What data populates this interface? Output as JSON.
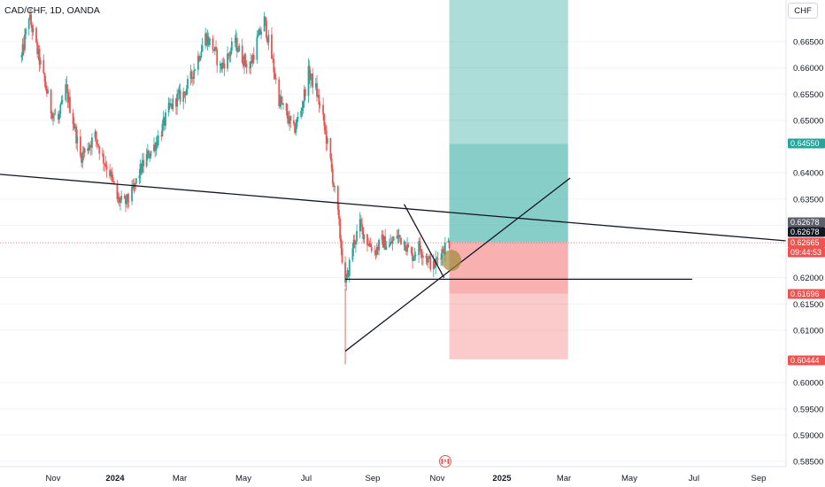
{
  "header": {
    "symbol_title": "CAD/CHF, 1D, OANDA",
    "currency_button": "CHF"
  },
  "colors": {
    "up_candle": "#26a69a",
    "down_candle": "#ef5350",
    "target_zone": "#26a69a",
    "stop_zone": "#ef5350",
    "trend_line": "#131722",
    "highlight_circle": "#a08a3c",
    "axis_text": "#131722",
    "current_price_line": "#ef5350"
  },
  "price_axis_labels": [
    "0.66500",
    "0.66000",
    "0.65500",
    "0.65000",
    "0.64000",
    "0.63500",
    "0.63000",
    "0.62000",
    "0.61500",
    "0.61000",
    "0.60000",
    "0.59500",
    "0.59000",
    "0.58500"
  ],
  "price_tags": [
    {
      "label": "0.64550",
      "color": "#26a69a",
      "text_color": "#ffffff"
    },
    {
      "label": "0.62678",
      "color": "#5d606b",
      "text_color": "#ffffff"
    },
    {
      "label": "0.62678",
      "color": "#131722",
      "text_color": "#ffffff"
    },
    {
      "label": "0.62665",
      "color": "#ef5350",
      "text_color": "#ffffff"
    },
    {
      "label": "09:44:53",
      "color": "#ef5350",
      "text_color": "#ffffff"
    },
    {
      "label": "0.61696",
      "color": "#ef5350",
      "text_color": "#ffffff"
    },
    {
      "label": "0.60444",
      "color": "#ef5350",
      "text_color": "#ffffff"
    }
  ],
  "time_axis_labels": [
    {
      "label": "Nov",
      "bold": false
    },
    {
      "label": "2024",
      "bold": true
    },
    {
      "label": "Mar",
      "bold": false
    },
    {
      "label": "May",
      "bold": false
    },
    {
      "label": "Jul",
      "bold": false
    },
    {
      "label": "Sep",
      "bold": false
    },
    {
      "label": "Nov",
      "bold": false
    },
    {
      "label": "2025",
      "bold": true
    },
    {
      "label": "Mar",
      "bold": false
    },
    {
      "label": "May",
      "bold": false
    },
    {
      "label": "Jul",
      "bold": false
    },
    {
      "label": "Sep",
      "bold": false
    }
  ],
  "time_marker_icon": "canada-flag-icon",
  "chart_data": {
    "type": "candlestick",
    "instrument": "CAD/CHF",
    "timeframe": "1D",
    "source": "OANDA",
    "ylim": [
      0.5835,
      0.672
    ],
    "price_ticks": [
      0.665,
      0.66,
      0.655,
      0.65,
      0.64,
      0.635,
      0.63,
      0.62,
      0.615,
      0.61,
      0.6,
      0.595,
      0.59,
      0.585
    ],
    "current_price": 0.62665,
    "countdown": "09:44:53",
    "position": {
      "type": "long",
      "entry": 0.62678,
      "target": 0.6455,
      "stop": 0.61696,
      "stop_extended": 0.60444
    },
    "price_path": [
      [
        "2023-10-02",
        0.662
      ],
      [
        "2023-10-09",
        0.67
      ],
      [
        "2023-10-16",
        0.664
      ],
      [
        "2023-10-23",
        0.658
      ],
      [
        "2023-10-30",
        0.652
      ],
      [
        "2023-11-06",
        0.65
      ],
      [
        "2023-11-13",
        0.656
      ],
      [
        "2023-11-20",
        0.65
      ],
      [
        "2023-11-27",
        0.643
      ],
      [
        "2023-12-04",
        0.645
      ],
      [
        "2023-12-11",
        0.647
      ],
      [
        "2023-12-18",
        0.643
      ],
      [
        "2023-12-25",
        0.64
      ],
      [
        "2024-01-01",
        0.635
      ],
      [
        "2024-01-08",
        0.634
      ],
      [
        "2024-01-15",
        0.636
      ],
      [
        "2024-01-22",
        0.64
      ],
      [
        "2024-01-29",
        0.643
      ],
      [
        "2024-02-05",
        0.645
      ],
      [
        "2024-02-12",
        0.648
      ],
      [
        "2024-02-19",
        0.652
      ],
      [
        "2024-02-26",
        0.654
      ],
      [
        "2024-03-04",
        0.655
      ],
      [
        "2024-03-11",
        0.658
      ],
      [
        "2024-03-18",
        0.662
      ],
      [
        "2024-03-25",
        0.666
      ],
      [
        "2024-04-01",
        0.664
      ],
      [
        "2024-04-08",
        0.66
      ],
      [
        "2024-04-15",
        0.662
      ],
      [
        "2024-04-22",
        0.665
      ],
      [
        "2024-04-29",
        0.662
      ],
      [
        "2024-05-06",
        0.66
      ],
      [
        "2024-05-13",
        0.665
      ],
      [
        "2024-05-20",
        0.669
      ],
      [
        "2024-05-27",
        0.662
      ],
      [
        "2024-06-03",
        0.654
      ],
      [
        "2024-06-10",
        0.651
      ],
      [
        "2024-06-17",
        0.648
      ],
      [
        "2024-06-24",
        0.652
      ],
      [
        "2024-07-01",
        0.659
      ],
      [
        "2024-07-08",
        0.656
      ],
      [
        "2024-07-15",
        0.65
      ],
      [
        "2024-07-22",
        0.642
      ],
      [
        "2024-07-29",
        0.632
      ],
      [
        "2024-08-05",
        0.618
      ],
      [
        "2024-08-12",
        0.626
      ],
      [
        "2024-08-19",
        0.63
      ],
      [
        "2024-08-26",
        0.627
      ],
      [
        "2024-09-02",
        0.625
      ],
      [
        "2024-09-09",
        0.627
      ],
      [
        "2024-09-16",
        0.626
      ],
      [
        "2024-09-23",
        0.628
      ],
      [
        "2024-09-30",
        0.627
      ],
      [
        "2024-10-07",
        0.624
      ],
      [
        "2024-10-14",
        0.626
      ],
      [
        "2024-10-21",
        0.624
      ],
      [
        "2024-10-28",
        0.622
      ],
      [
        "2024-11-04",
        0.625
      ],
      [
        "2024-11-11",
        0.6267
      ]
    ],
    "drawings": [
      {
        "kind": "trendline",
        "from": [
          "2023-08-25",
          0.64
        ],
        "to": [
          "2025-09-30",
          0.627
        ]
      },
      {
        "kind": "trendline",
        "from": [
          "2024-08-05",
          0.606
        ],
        "to": [
          "2025-03-07",
          0.639
        ]
      },
      {
        "kind": "trendline",
        "from": [
          "2024-09-30",
          0.634
        ],
        "to": [
          "2024-11-07",
          0.62
        ]
      },
      {
        "kind": "horizontal_segment",
        "from": [
          "2024-08-05",
          0.6197
        ],
        "to": [
          "2025-07-01",
          0.6197
        ]
      }
    ],
    "highlight_circle_at": [
      "2024-11-14",
      0.6233
    ],
    "x_axis_ticks": [
      "Nov",
      "2024",
      "Mar",
      "May",
      "Jul",
      "Sep",
      "Nov",
      "2025",
      "Mar",
      "May",
      "Jul",
      "Sep"
    ]
  }
}
